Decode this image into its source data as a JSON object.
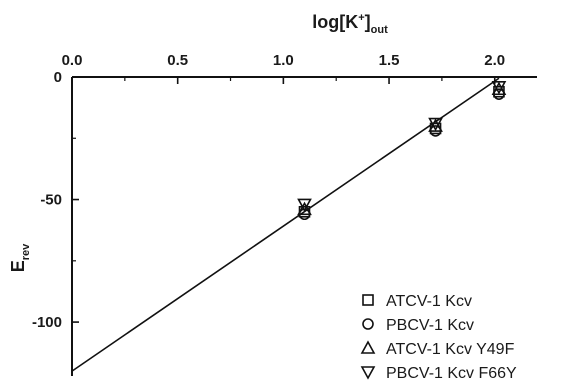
{
  "chart_data": {
    "type": "scatter",
    "xlabel": {
      "main": "log[K",
      "sup": "+",
      "close": "]",
      "sub": "out"
    },
    "ylabel": {
      "main": "E",
      "sub": "rev"
    },
    "xlim": [
      0.0,
      2.2
    ],
    "ylim": [
      -122,
      0
    ],
    "x_ticks": [
      {
        "value": 0.0,
        "label": "0.0"
      },
      {
        "value": 0.5,
        "label": "0.5"
      },
      {
        "value": 1.0,
        "label": "1.0"
      },
      {
        "value": 1.5,
        "label": "1.5"
      },
      {
        "value": 2.0,
        "label": "2.0"
      }
    ],
    "x_minor_ticks": [
      0.25,
      0.75,
      1.25,
      1.75
    ],
    "y_ticks": [
      {
        "value": 0,
        "label": "0"
      },
      {
        "value": -50,
        "label": "-50"
      },
      {
        "value": -100,
        "label": "-100"
      }
    ],
    "y_minor_ticks": [
      -25,
      -75
    ],
    "x_axis_position": "top",
    "grid": false,
    "legend_position": "bottom-right",
    "series": [
      {
        "name": "ATCV-1 Kcv",
        "marker": "square",
        "points": [
          [
            1.1,
            -55
          ],
          [
            1.72,
            -21
          ],
          [
            2.02,
            -6
          ]
        ]
      },
      {
        "name": "PBCV-1 Kcv",
        "marker": "circle",
        "points": [
          [
            1.1,
            -56
          ],
          [
            1.72,
            -22
          ],
          [
            2.02,
            -7
          ]
        ]
      },
      {
        "name": "ATCV-1 Kcv Y49F",
        "marker": "triangle-up",
        "points": [
          [
            1.1,
            -54
          ],
          [
            1.72,
            -20
          ],
          [
            2.02,
            -5
          ]
        ]
      },
      {
        "name": "PBCV-1 Kcv F66Y",
        "marker": "triangle-down",
        "points": [
          [
            1.1,
            -52
          ],
          [
            1.72,
            -19
          ],
          [
            2.02,
            -4
          ]
        ]
      }
    ],
    "fit_line": {
      "x": [
        0.0,
        2.02
      ],
      "y": [
        -120,
        -0.5
      ]
    },
    "colors": {
      "ink": "#111111",
      "background": "#ffffff"
    }
  }
}
